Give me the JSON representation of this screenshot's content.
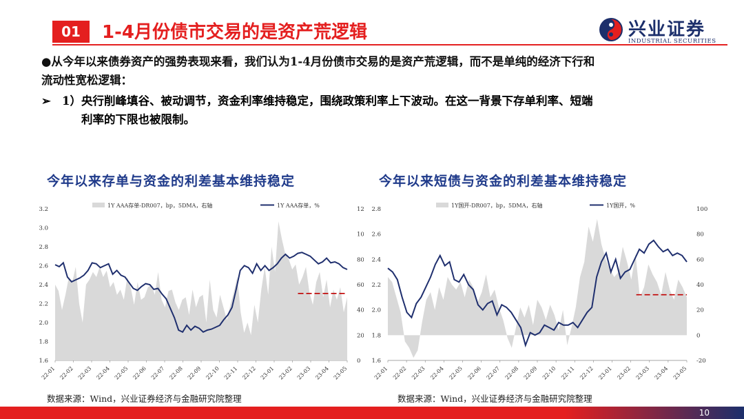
{
  "header": {
    "section_number": "01",
    "title": "1-4月份债市交易的是资产荒逻辑",
    "logo_cn": "兴业证券",
    "logo_en": "INDUSTRIAL SECURITIES"
  },
  "body": {
    "para1_line1": "●从今年以来债券资产的强势表现来看，我们认为1-4月份债市交易的是资产荒逻辑，而不是单纯的经济下行和",
    "para1_line2": "流动性宽松逻辑：",
    "bullet_symbol": "➢",
    "bullet_line1": "1）央行削峰填谷、被动调节，资金利率维持稳定，围绕政策利率上下波动。在这一背景下存单利率、短端",
    "bullet_line2": "利率的下限也被限制。"
  },
  "footer": {
    "page_number": "10"
  },
  "colors": {
    "accent_red": "#e41f1f",
    "navy": "#1c2f6b",
    "line": "#1f2f6e",
    "area": "#d9d9d9",
    "dash": "#c00000"
  },
  "chart_data": [
    {
      "type": "area+line",
      "title": "今年以来存单与资金的利差基本维持稳定",
      "source": "数据来源：Wind，兴业证券经济与金融研究院整理",
      "legend": [
        "1Y AAA存单-DR007，bp，5DMA，右轴",
        "1Y AAA存单，%"
      ],
      "x_ticks": [
        "22-01",
        "22-02",
        "22-03",
        "22-04",
        "22-05",
        "22-06",
        "22-07",
        "22-08",
        "22-09",
        "22-10",
        "22-11",
        "22-12",
        "23-01",
        "23-02",
        "23-03",
        "23-04",
        "23-05"
      ],
      "left_axis": {
        "ticks": [
          "3.2",
          "3.0",
          "2.8",
          "2.6",
          "2.4",
          "2.2",
          "2.0",
          "1.8",
          "1.6"
        ],
        "ylim": [
          1.6,
          3.2
        ]
      },
      "right_axis": {
        "ticks": [
          "120",
          "100",
          "80",
          "60",
          "40",
          "20",
          "0"
        ],
        "ylim": [
          0,
          120
        ]
      },
      "series": [
        {
          "name": "1Y AAA存单-DR007，bp，5DMA，右轴",
          "axis": "right",
          "kind": "area",
          "values": [
            60,
            55,
            40,
            52,
            66,
            62,
            74,
            45,
            30,
            60,
            64,
            70,
            66,
            74,
            66,
            71,
            58,
            62,
            52,
            56,
            48,
            66,
            58,
            44,
            62,
            48,
            50,
            58,
            60,
            52,
            70,
            48,
            42,
            55,
            56,
            46,
            40,
            48,
            50,
            36,
            56,
            42,
            50,
            52,
            30,
            64,
            40,
            34,
            52,
            42,
            32,
            44,
            54,
            66,
            38,
            22,
            30,
            20,
            44,
            30,
            56,
            74,
            52,
            90,
            70,
            110,
            96,
            84,
            80,
            72,
            76,
            60,
            66,
            74,
            54,
            44,
            62,
            70,
            50,
            64,
            42,
            56,
            48,
            58,
            38,
            50
          ]
        },
        {
          "name": "1Y AAA存单，%",
          "axis": "left",
          "kind": "line",
          "values": [
            2.61,
            2.59,
            2.63,
            2.48,
            2.43,
            2.45,
            2.47,
            2.5,
            2.55,
            2.63,
            2.62,
            2.58,
            2.6,
            2.62,
            2.51,
            2.55,
            2.5,
            2.48,
            2.42,
            2.36,
            2.34,
            2.38,
            2.41,
            2.4,
            2.35,
            2.36,
            2.3,
            2.25,
            2.15,
            2.05,
            1.92,
            1.9,
            1.97,
            1.92,
            1.96,
            1.94,
            1.9,
            1.92,
            1.93,
            1.95,
            1.97,
            2.03,
            2.08,
            2.16,
            2.35,
            2.55,
            2.6,
            2.58,
            2.52,
            2.62,
            2.55,
            2.6,
            2.55,
            2.58,
            2.62,
            2.68,
            2.72,
            2.68,
            2.7,
            2.73,
            2.74,
            2.72,
            2.7,
            2.66,
            2.62,
            2.64,
            2.68,
            2.63,
            2.64,
            2.62,
            2.58,
            2.56
          ]
        }
      ],
      "annotation": {
        "kind": "dashed-reference",
        "right_axis_value": 53,
        "from_tick": "23-02",
        "to_tick": "23-05"
      }
    },
    {
      "type": "area+line",
      "title": "今年以来短债与资金的利差基本维持稳定",
      "source": "数据来源：Wind，兴业证券经济与金融研究院整理",
      "legend": [
        "1Y国开-DR007，bp，5DMA，右轴",
        "1Y国开，%"
      ],
      "x_ticks": [
        "22-01",
        "22-02",
        "22-03",
        "22-04",
        "22-05",
        "22-06",
        "22-07",
        "22-08",
        "22-09",
        "22-10",
        "22-11",
        "22-12",
        "23-01",
        "23-02",
        "23-03",
        "23-04",
        "23-05"
      ],
      "left_axis": {
        "ticks": [
          "2.8",
          "2.6",
          "2.4",
          "2.2",
          "2.0",
          "1.8",
          "1.6"
        ],
        "ylim": [
          1.6,
          2.8
        ]
      },
      "right_axis": {
        "ticks": [
          "100",
          "80",
          "60",
          "40",
          "20",
          "0",
          "-20"
        ],
        "ylim": [
          -20,
          100
        ]
      },
      "series": [
        {
          "name": "1Y国开-DR007，bp，5DMA，右轴",
          "axis": "right",
          "kind": "area",
          "values": [
            46,
            42,
            30,
            18,
            -5,
            -10,
            -18,
            -12,
            10,
            28,
            34,
            20,
            38,
            28,
            46,
            40,
            36,
            42,
            30,
            44,
            38,
            26,
            34,
            48,
            30,
            36,
            22,
            12,
            -2,
            -10,
            6,
            22,
            14,
            24,
            8,
            28,
            22,
            12,
            24,
            16,
            4,
            20,
            -8,
            6,
            22,
            46,
            58,
            86,
            74,
            92,
            72,
            60,
            52,
            46,
            50,
            70,
            58,
            44,
            64,
            30,
            38,
            56,
            48,
            42,
            32,
            50,
            36,
            28,
            44,
            38,
            30
          ]
        },
        {
          "name": "1Y国开，%",
          "axis": "left",
          "kind": "line",
          "values": [
            2.33,
            2.3,
            2.24,
            2.1,
            1.98,
            1.94,
            2.05,
            2.1,
            2.18,
            2.26,
            2.36,
            2.43,
            2.35,
            2.38,
            2.24,
            2.22,
            2.28,
            2.2,
            2.16,
            2.04,
            2.0,
            2.05,
            2.07,
            1.96,
            2.04,
            2.02,
            1.98,
            1.92,
            1.86,
            1.72,
            1.82,
            1.8,
            1.82,
            1.88,
            1.86,
            1.84,
            1.9,
            1.88,
            1.88,
            1.9,
            1.86,
            1.92,
            1.98,
            2.02,
            2.26,
            2.38,
            2.45,
            2.3,
            2.4,
            2.25,
            2.3,
            2.32,
            2.4,
            2.48,
            2.45,
            2.52,
            2.55,
            2.5,
            2.46,
            2.48,
            2.43,
            2.45,
            2.43,
            2.38
          ]
        }
      ],
      "annotation": {
        "kind": "dashed-reference",
        "right_axis_value": 32,
        "from_tick": "23-02",
        "to_tick": "23-05"
      }
    }
  ]
}
